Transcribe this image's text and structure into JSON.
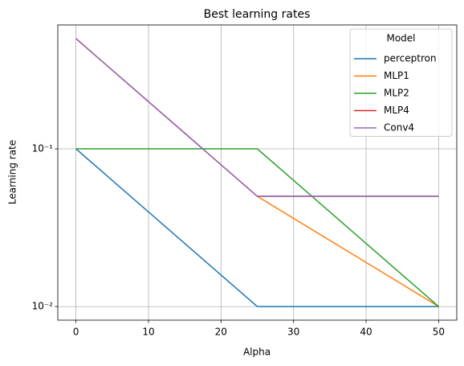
{
  "chart_data": {
    "type": "line",
    "title": "Best learning rates",
    "x_label": "Alpha",
    "y_label": "Learning rate",
    "x": [
      0,
      25,
      50
    ],
    "series": [
      {
        "name": "perceptron",
        "color": "#1f77b4",
        "values": [
          0.1,
          0.01,
          0.01
        ]
      },
      {
        "name": "MLP1",
        "color": "#ff7f0e",
        "values": [
          0.5,
          0.05,
          0.01
        ]
      },
      {
        "name": "MLP2",
        "color": "#2ca02c",
        "values": [
          0.1,
          0.1,
          0.01
        ]
      },
      {
        "name": "MLP4",
        "color": "#d62728",
        "values": [
          0.5,
          0.05,
          0.05
        ]
      },
      {
        "name": "Conv4",
        "color": "#9467bd",
        "values": [
          0.5,
          0.05,
          0.05
        ]
      }
    ],
    "xlim": [
      -2.5,
      52.5
    ],
    "xticks": [
      0,
      10,
      20,
      30,
      40,
      50
    ],
    "ylim": [
      0.0082,
      0.61
    ],
    "yticks": [
      {
        "value": 0.1,
        "label": "10⁻¹"
      },
      {
        "value": 0.01,
        "label": "10⁻²"
      }
    ],
    "log_y": true,
    "grid": true,
    "legend": {
      "title": "Model",
      "position": "upper right"
    }
  }
}
